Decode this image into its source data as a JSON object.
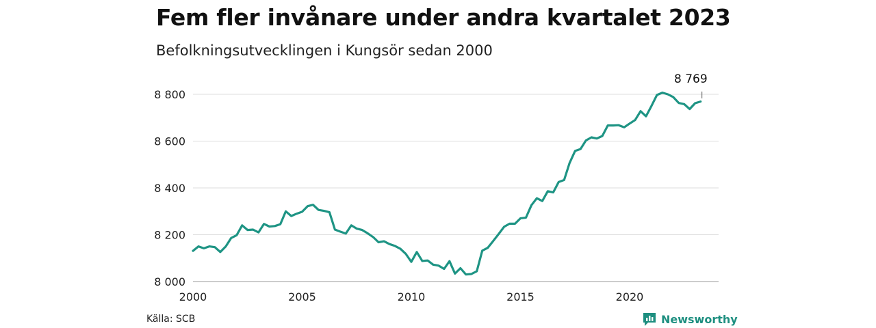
{
  "header": {
    "title": "Fem fler invånare under andra kvartalet 2023",
    "subtitle": "Befolkningsutvecklingen i Kungsör sedan 2000"
  },
  "footer": {
    "source": "Källa: SCB",
    "brand": "Newsworthy"
  },
  "colors": {
    "line": "#1e9484",
    "grid": "#dddddd",
    "brand": "#1e8f80"
  },
  "chart_data": {
    "type": "line",
    "title": "Fem fler invånare under andra kvartalet 2023",
    "subtitle": "Befolkningsutvecklingen i Kungsör sedan 2000",
    "xlabel": "",
    "ylabel": "",
    "xlim": [
      2000,
      2024.5
    ],
    "ylim": [
      8000,
      8820
    ],
    "yticks": [
      8000,
      8200,
      8400,
      8600,
      8800
    ],
    "ytick_labels": [
      "8 000",
      "8 200",
      "8 400",
      "8 600",
      "8 800"
    ],
    "xticks": [
      2000,
      2005,
      2010,
      2015,
      2020
    ],
    "xtick_labels": [
      "2000",
      "2005",
      "2010",
      "2015",
      "2020"
    ],
    "grid": true,
    "annotation": {
      "x": 2023.25,
      "value": 8769,
      "label": "8 769"
    },
    "x": [
      2000.0,
      2000.25,
      2000.5,
      2000.75,
      2001.0,
      2001.25,
      2001.5,
      2001.75,
      2002.0,
      2002.25,
      2002.5,
      2002.75,
      2003.0,
      2003.25,
      2003.5,
      2003.75,
      2004.0,
      2004.25,
      2004.5,
      2004.75,
      2005.0,
      2005.25,
      2005.5,
      2005.75,
      2006.0,
      2006.25,
      2006.5,
      2006.75,
      2007.0,
      2007.25,
      2007.5,
      2007.75,
      2008.0,
      2008.25,
      2008.5,
      2008.75,
      2009.0,
      2009.25,
      2009.5,
      2009.75,
      2010.0,
      2010.25,
      2010.5,
      2010.75,
      2011.0,
      2011.25,
      2011.5,
      2011.75,
      2012.0,
      2012.25,
      2012.5,
      2012.75,
      2013.0,
      2013.25,
      2013.5,
      2013.75,
      2014.0,
      2014.25,
      2014.5,
      2014.75,
      2015.0,
      2015.25,
      2015.5,
      2015.75,
      2016.0,
      2016.25,
      2016.5,
      2016.75,
      2017.0,
      2017.25,
      2017.5,
      2017.75,
      2018.0,
      2018.25,
      2018.5,
      2018.75,
      2019.0,
      2019.25,
      2019.5,
      2019.75,
      2020.0,
      2020.25,
      2020.5,
      2020.75,
      2021.0,
      2021.25,
      2021.5,
      2021.75,
      2022.0,
      2022.25,
      2022.5,
      2022.75,
      2023.0,
      2023.25
    ],
    "series": [
      {
        "values": [
          8131,
          8150,
          8142,
          8150,
          8147,
          8126,
          8150,
          8186,
          8198,
          8240,
          8220,
          8222,
          8210,
          8246,
          8235,
          8237,
          8245,
          8300,
          8280,
          8290,
          8298,
          8322,
          8328,
          8306,
          8302,
          8296,
          8222,
          8213,
          8205,
          8240,
          8226,
          8220,
          8206,
          8190,
          8168,
          8172,
          8160,
          8152,
          8140,
          8118,
          8084,
          8126,
          8088,
          8090,
          8072,
          8068,
          8054,
          8087,
          8034,
          8057,
          8030,
          8032,
          8044,
          8132,
          8144,
          8173,
          8203,
          8234,
          8247,
          8247,
          8270,
          8273,
          8326,
          8356,
          8344,
          8386,
          8381,
          8425,
          8434,
          8507,
          8558,
          8566,
          8603,
          8616,
          8611,
          8622,
          8667,
          8667,
          8668,
          8659,
          8675,
          8690,
          8728,
          8706,
          8750,
          8797,
          8807,
          8800,
          8788,
          8763,
          8758,
          8737,
          8762,
          8769
        ]
      }
    ]
  }
}
